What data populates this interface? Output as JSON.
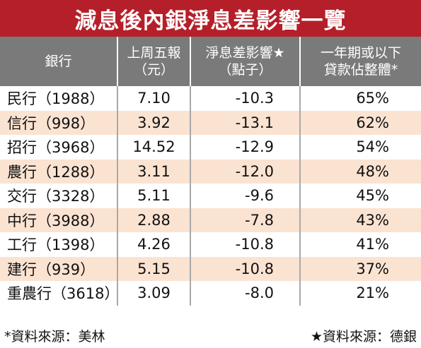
{
  "title": "減息後內銀淨息差影響一覽",
  "headers": {
    "bank": "銀行",
    "price_line1": "上周五報",
    "price_line2": "（元）",
    "impact_line1": "淨息差影響★",
    "impact_line2": "（點子）",
    "share_line1": "一年期或以下",
    "share_line2": "貸款佔整體*"
  },
  "rows": [
    {
      "bank": "民行（1988）",
      "price": "7.10",
      "impact": "-10.3",
      "share": "65%"
    },
    {
      "bank": "信行（998）",
      "price": "3.92",
      "impact": "-13.1",
      "share": "62%"
    },
    {
      "bank": "招行（3968）",
      "price": "14.52",
      "impact": "-12.9",
      "share": "54%"
    },
    {
      "bank": "農行（1288）",
      "price": "3.11",
      "impact": "-12.0",
      "share": "48%"
    },
    {
      "bank": "交行（3328）",
      "price": "5.11",
      "impact": "-9.6",
      "share": "45%"
    },
    {
      "bank": "中行（3988）",
      "price": "2.88",
      "impact": "-7.8",
      "share": "43%"
    },
    {
      "bank": "工行（1398）",
      "price": "4.26",
      "impact": "-10.8",
      "share": "41%"
    },
    {
      "bank": "建行（939）",
      "price": "5.15",
      "impact": "-10.8",
      "share": "37%"
    },
    {
      "bank": "重農行（3618）",
      "price": "3.09",
      "impact": "-8.0",
      "share": "21%"
    }
  ],
  "footer": {
    "left": "*資料來源：美林",
    "right": "★資料來源：德銀"
  },
  "colors": {
    "title_bg": "#b51f2a",
    "header_bg": "#7a7a7a",
    "stripe": "#fbe3d2"
  }
}
